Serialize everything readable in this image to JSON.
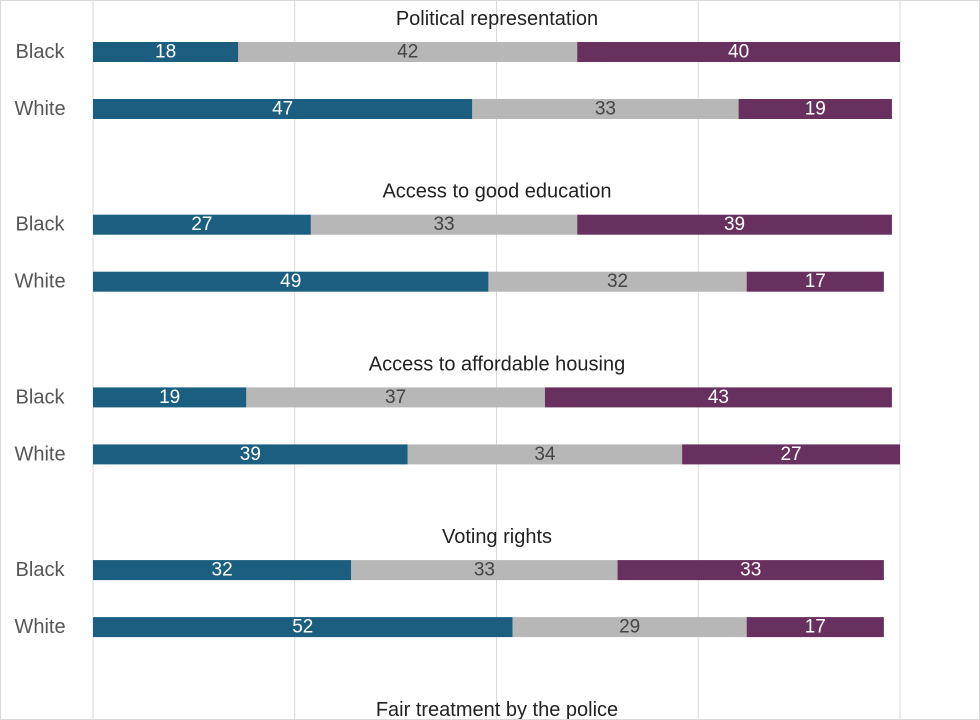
{
  "chart_data": {
    "type": "bar",
    "orientation": "horizontal",
    "stacked": true,
    "xlim": [
      0,
      100
    ],
    "grid": true,
    "colors": [
      "#1b5e80",
      "#b7b7b7",
      "#68305f"
    ],
    "label_colors": [
      "#ffffff",
      "#444444",
      "#ffffff"
    ],
    "groups": [
      {
        "title": "Political representation",
        "rows": [
          {
            "label": "Black",
            "values": [
              18,
              42,
              40
            ]
          },
          {
            "label": "White",
            "values": [
              47,
              33,
              19
            ]
          }
        ]
      },
      {
        "title": "Access to good education",
        "rows": [
          {
            "label": "Black",
            "values": [
              27,
              33,
              39
            ]
          },
          {
            "label": "White",
            "values": [
              49,
              32,
              17
            ]
          }
        ]
      },
      {
        "title": "Access to affordable housing",
        "rows": [
          {
            "label": "Black",
            "values": [
              19,
              37,
              43
            ]
          },
          {
            "label": "White",
            "values": [
              39,
              34,
              27
            ]
          }
        ]
      },
      {
        "title": "Voting rights",
        "rows": [
          {
            "label": "Black",
            "values": [
              32,
              33,
              33
            ]
          },
          {
            "label": "White",
            "values": [
              52,
              29,
              17
            ]
          }
        ]
      },
      {
        "title": "Fair treatment by the police",
        "rows": []
      }
    ]
  }
}
